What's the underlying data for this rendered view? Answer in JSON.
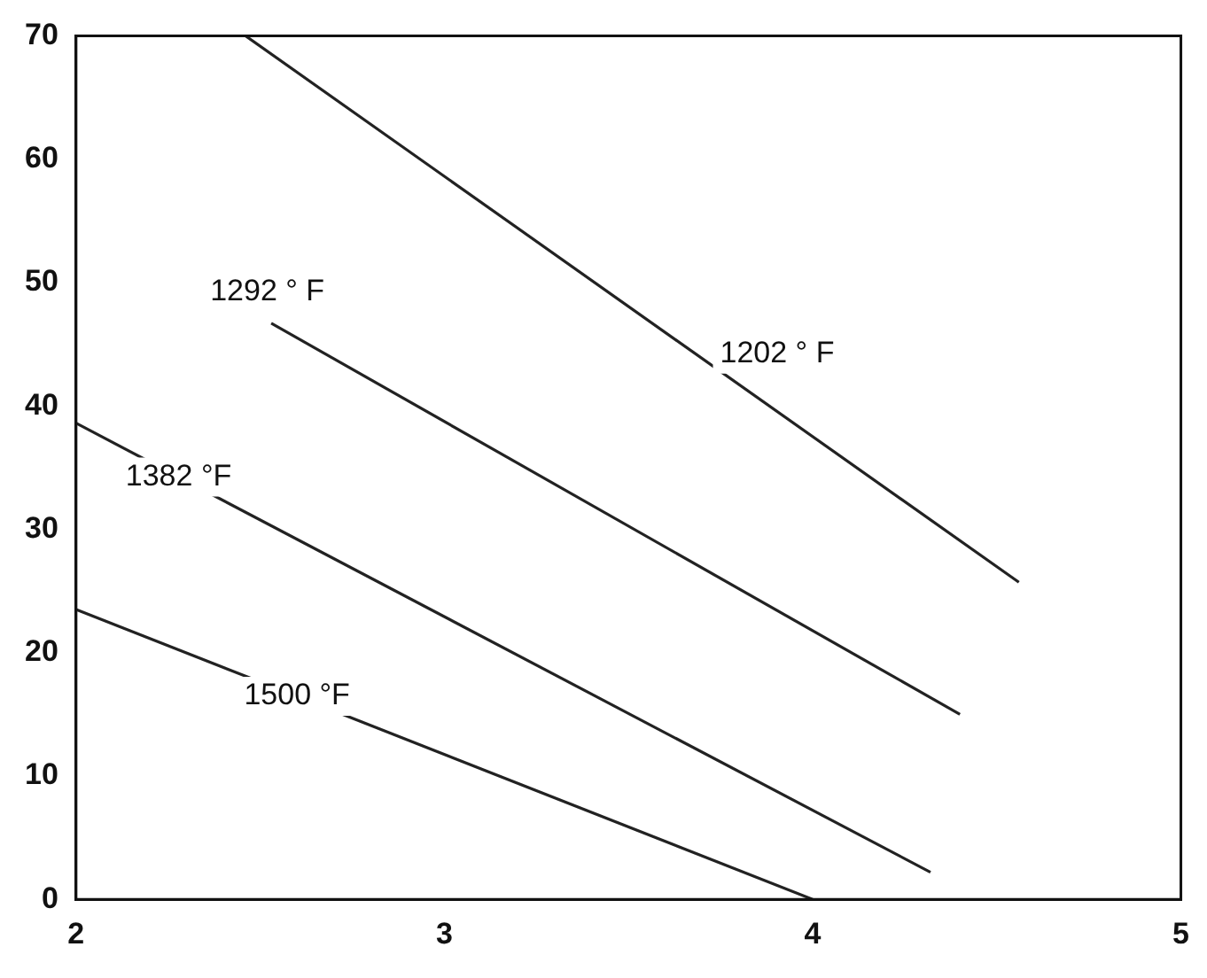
{
  "chart_data": {
    "type": "line",
    "xlim": [
      2,
      5
    ],
    "ylim": [
      0,
      70
    ],
    "xticks": [
      2,
      3,
      4,
      5
    ],
    "yticks": [
      0,
      10,
      20,
      30,
      40,
      50,
      60,
      70
    ],
    "grid": false,
    "legend": false,
    "marker": "none",
    "line_style": "solid",
    "series": [
      {
        "name": "1202 ° F",
        "color": "#222222",
        "x": [
          2.46,
          4.56
        ],
        "values": [
          70,
          25.7
        ]
      },
      {
        "name": "1292 ° F",
        "color": "#222222",
        "x": [
          2.53,
          4.4
        ],
        "values": [
          46.7,
          15
        ]
      },
      {
        "name": "1382 °F",
        "color": "#222222",
        "x": [
          2,
          4.32
        ],
        "values": [
          38.6,
          2.2
        ]
      },
      {
        "name": "1500 °F",
        "color": "#222222",
        "x": [
          2,
          4
        ],
        "values": [
          23.5,
          0
        ]
      }
    ]
  }
}
